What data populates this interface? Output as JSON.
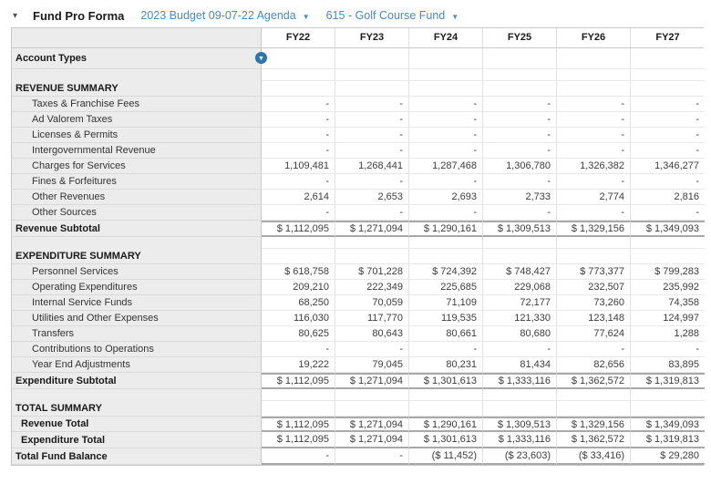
{
  "header": {
    "collapse_icon": "▾",
    "title": "Fund Pro Forma",
    "budget_selector": "2023 Budget 09-07-22 Agenda",
    "budget_caret": "▼",
    "fund_selector": "615 - Golf Course Fund",
    "fund_caret": "▼",
    "link_color": "#4a89c4"
  },
  "filter_icon": {
    "name": "filter-dropdown",
    "glyph": "▼",
    "color": "#2e77b0"
  },
  "table": {
    "columns": [
      "FY22",
      "FY23",
      "FY24",
      "FY25",
      "FY26",
      "FY27"
    ],
    "rows": [
      {
        "label": "Account Types",
        "type": "account",
        "indent": 0,
        "bold": true,
        "values": [
          "",
          "",
          "",
          "",
          "",
          ""
        ]
      },
      {
        "label": "",
        "type": "spacer",
        "indent": 0,
        "bold": false,
        "values": [
          "",
          "",
          "",
          "",
          "",
          ""
        ]
      },
      {
        "label": "REVENUE SUMMARY",
        "type": "section",
        "indent": 0,
        "bold": true,
        "values": [
          "",
          "",
          "",
          "",
          "",
          ""
        ]
      },
      {
        "label": "Taxes & Franchise Fees",
        "type": "detail",
        "indent": 1,
        "bold": false,
        "values": [
          "-",
          "-",
          "-",
          "-",
          "-",
          "-"
        ]
      },
      {
        "label": "Ad Valorem Taxes",
        "type": "detail",
        "indent": 1,
        "bold": false,
        "values": [
          "-",
          "-",
          "-",
          "-",
          "-",
          "-"
        ]
      },
      {
        "label": "Licenses & Permits",
        "type": "detail",
        "indent": 1,
        "bold": false,
        "values": [
          "-",
          "-",
          "-",
          "-",
          "-",
          "-"
        ]
      },
      {
        "label": "Intergovernmental Revenue",
        "type": "detail",
        "indent": 1,
        "bold": false,
        "values": [
          "-",
          "-",
          "-",
          "-",
          "-",
          "-"
        ]
      },
      {
        "label": "Charges for Services",
        "type": "detail",
        "indent": 1,
        "bold": false,
        "values": [
          "1,109,481",
          "1,268,441",
          "1,287,468",
          "1,306,780",
          "1,326,382",
          "1,346,277"
        ]
      },
      {
        "label": "Fines & Forfeitures",
        "type": "detail",
        "indent": 1,
        "bold": false,
        "values": [
          "-",
          "-",
          "-",
          "-",
          "-",
          "-"
        ]
      },
      {
        "label": "Other Revenues",
        "type": "detail",
        "indent": 1,
        "bold": false,
        "values": [
          "2,614",
          "2,653",
          "2,693",
          "2,733",
          "2,774",
          "2,816"
        ]
      },
      {
        "label": "Other Sources",
        "type": "detail",
        "indent": 1,
        "bold": false,
        "values": [
          "-",
          "-",
          "-",
          "-",
          "-",
          "-"
        ]
      },
      {
        "label": "Revenue Subtotal",
        "type": "subtotal",
        "indent": 0,
        "bold": true,
        "values": [
          "$ 1,112,095",
          "$ 1,271,094",
          "$ 1,290,161",
          "$ 1,309,513",
          "$ 1,329,156",
          "$ 1,349,093"
        ]
      },
      {
        "label": "",
        "type": "spacer",
        "indent": 0,
        "bold": false,
        "values": [
          "",
          "",
          "",
          "",
          "",
          ""
        ]
      },
      {
        "label": "EXPENDITURE SUMMARY",
        "type": "section",
        "indent": 0,
        "bold": true,
        "values": [
          "",
          "",
          "",
          "",
          "",
          ""
        ]
      },
      {
        "label": "Personnel Services",
        "type": "detail",
        "indent": 1,
        "bold": false,
        "values": [
          "$ 618,758",
          "$ 701,228",
          "$ 724,392",
          "$ 748,427",
          "$ 773,377",
          "$ 799,283"
        ]
      },
      {
        "label": "Operating Expenditures",
        "type": "detail",
        "indent": 1,
        "bold": false,
        "values": [
          "209,210",
          "222,349",
          "225,685",
          "229,068",
          "232,507",
          "235,992"
        ]
      },
      {
        "label": "Internal Service Funds",
        "type": "detail",
        "indent": 1,
        "bold": false,
        "values": [
          "68,250",
          "70,059",
          "71,109",
          "72,177",
          "73,260",
          "74,358"
        ]
      },
      {
        "label": "Utilities and Other Expenses",
        "type": "detail",
        "indent": 1,
        "bold": false,
        "values": [
          "116,030",
          "117,770",
          "119,535",
          "121,330",
          "123,148",
          "124,997"
        ]
      },
      {
        "label": "Transfers",
        "type": "detail",
        "indent": 1,
        "bold": false,
        "values": [
          "80,625",
          "80,643",
          "80,661",
          "80,680",
          "77,624",
          "1,288"
        ]
      },
      {
        "label": "Contributions to Operations",
        "type": "detail",
        "indent": 1,
        "bold": false,
        "values": [
          "-",
          "-",
          "-",
          "-",
          "-",
          "-"
        ]
      },
      {
        "label": "Year End Adjustments",
        "type": "detail",
        "indent": 1,
        "bold": false,
        "values": [
          "19,222",
          "79,045",
          "80,231",
          "81,434",
          "82,656",
          "83,895"
        ]
      },
      {
        "label": "Expenditure Subtotal",
        "type": "subtotal",
        "indent": 0,
        "bold": true,
        "values": [
          "$ 1,112,095",
          "$ 1,271,094",
          "$ 1,301,613",
          "$ 1,333,116",
          "$ 1,362,572",
          "$ 1,319,813"
        ]
      },
      {
        "label": "",
        "type": "spacer",
        "indent": 0,
        "bold": false,
        "values": [
          "",
          "",
          "",
          "",
          "",
          ""
        ]
      },
      {
        "label": "TOTAL SUMMARY",
        "type": "section",
        "indent": 0,
        "bold": true,
        "values": [
          "",
          "",
          "",
          "",
          "",
          ""
        ]
      },
      {
        "label": "Revenue Total",
        "type": "total-first",
        "indent": "half",
        "bold": true,
        "values": [
          "$ 1,112,095",
          "$ 1,271,094",
          "$ 1,290,161",
          "$ 1,309,513",
          "$ 1,329,156",
          "$ 1,349,093"
        ]
      },
      {
        "label": "Expenditure Total",
        "type": "total-last",
        "indent": "half",
        "bold": true,
        "values": [
          "$ 1,112,095",
          "$ 1,271,094",
          "$ 1,301,613",
          "$ 1,333,116",
          "$ 1,362,572",
          "$ 1,319,813"
        ]
      },
      {
        "label": "Total Fund Balance",
        "type": "grand",
        "indent": 0,
        "bold": true,
        "values": [
          "-",
          "-",
          "($ 11,452)",
          "($ 23,603)",
          "($ 33,416)",
          "$ 29,280"
        ]
      }
    ]
  }
}
